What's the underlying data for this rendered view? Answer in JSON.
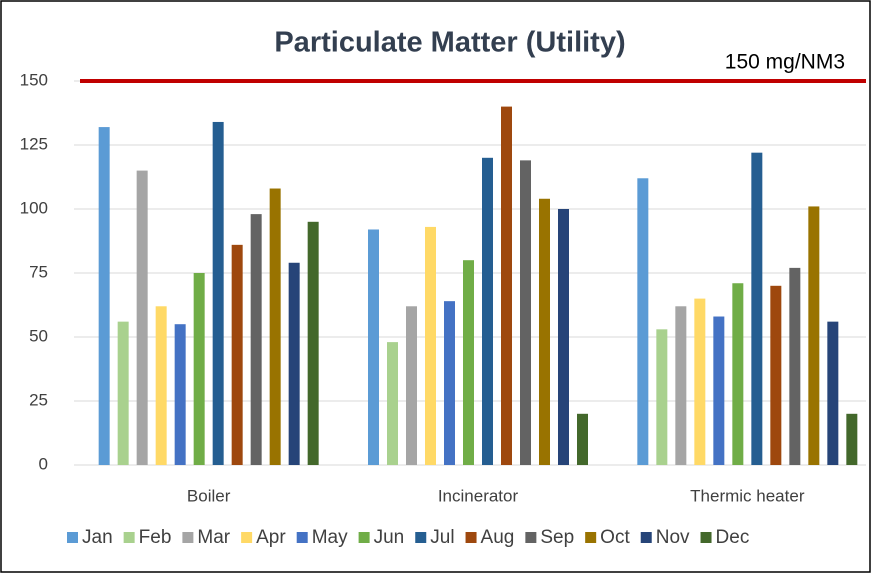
{
  "chart_data": {
    "type": "bar",
    "title": "Particulate Matter (Utility)",
    "categories": [
      "Boiler",
      "Incinerator",
      "Thermic heater"
    ],
    "series": [
      {
        "name": "Jan",
        "color": "#5b9bd5",
        "values": [
          132,
          92,
          112
        ]
      },
      {
        "name": "Feb",
        "color": "#a9d18e",
        "values": [
          56,
          48,
          53
        ]
      },
      {
        "name": "Mar",
        "color": "#a5a5a5",
        "values": [
          115,
          62,
          62
        ]
      },
      {
        "name": "Apr",
        "color": "#ffd966",
        "values": [
          62,
          93,
          65
        ]
      },
      {
        "name": "May",
        "color": "#4472c4",
        "values": [
          55,
          64,
          58
        ]
      },
      {
        "name": "Jun",
        "color": "#70ad47",
        "values": [
          75,
          80,
          71
        ]
      },
      {
        "name": "Jul",
        "color": "#255e91",
        "values": [
          134,
          120,
          122
        ]
      },
      {
        "name": "Aug",
        "color": "#9e480e",
        "values": [
          86,
          140,
          70
        ]
      },
      {
        "name": "Sep",
        "color": "#636363",
        "values": [
          98,
          119,
          77
        ]
      },
      {
        "name": "Oct",
        "color": "#997300",
        "values": [
          108,
          104,
          101
        ]
      },
      {
        "name": "Nov",
        "color": "#264478",
        "values": [
          79,
          100,
          56
        ]
      },
      {
        "name": "Dec",
        "color": "#43682b",
        "values": [
          95,
          20,
          20
        ]
      }
    ],
    "ylim": [
      0,
      150
    ],
    "yticks": [
      0,
      25,
      50,
      75,
      100,
      125,
      150
    ],
    "grid": true,
    "legend": "bottom",
    "reference_line": {
      "value": 150,
      "label": "150 mg/NM3",
      "color": "#c00000"
    }
  }
}
